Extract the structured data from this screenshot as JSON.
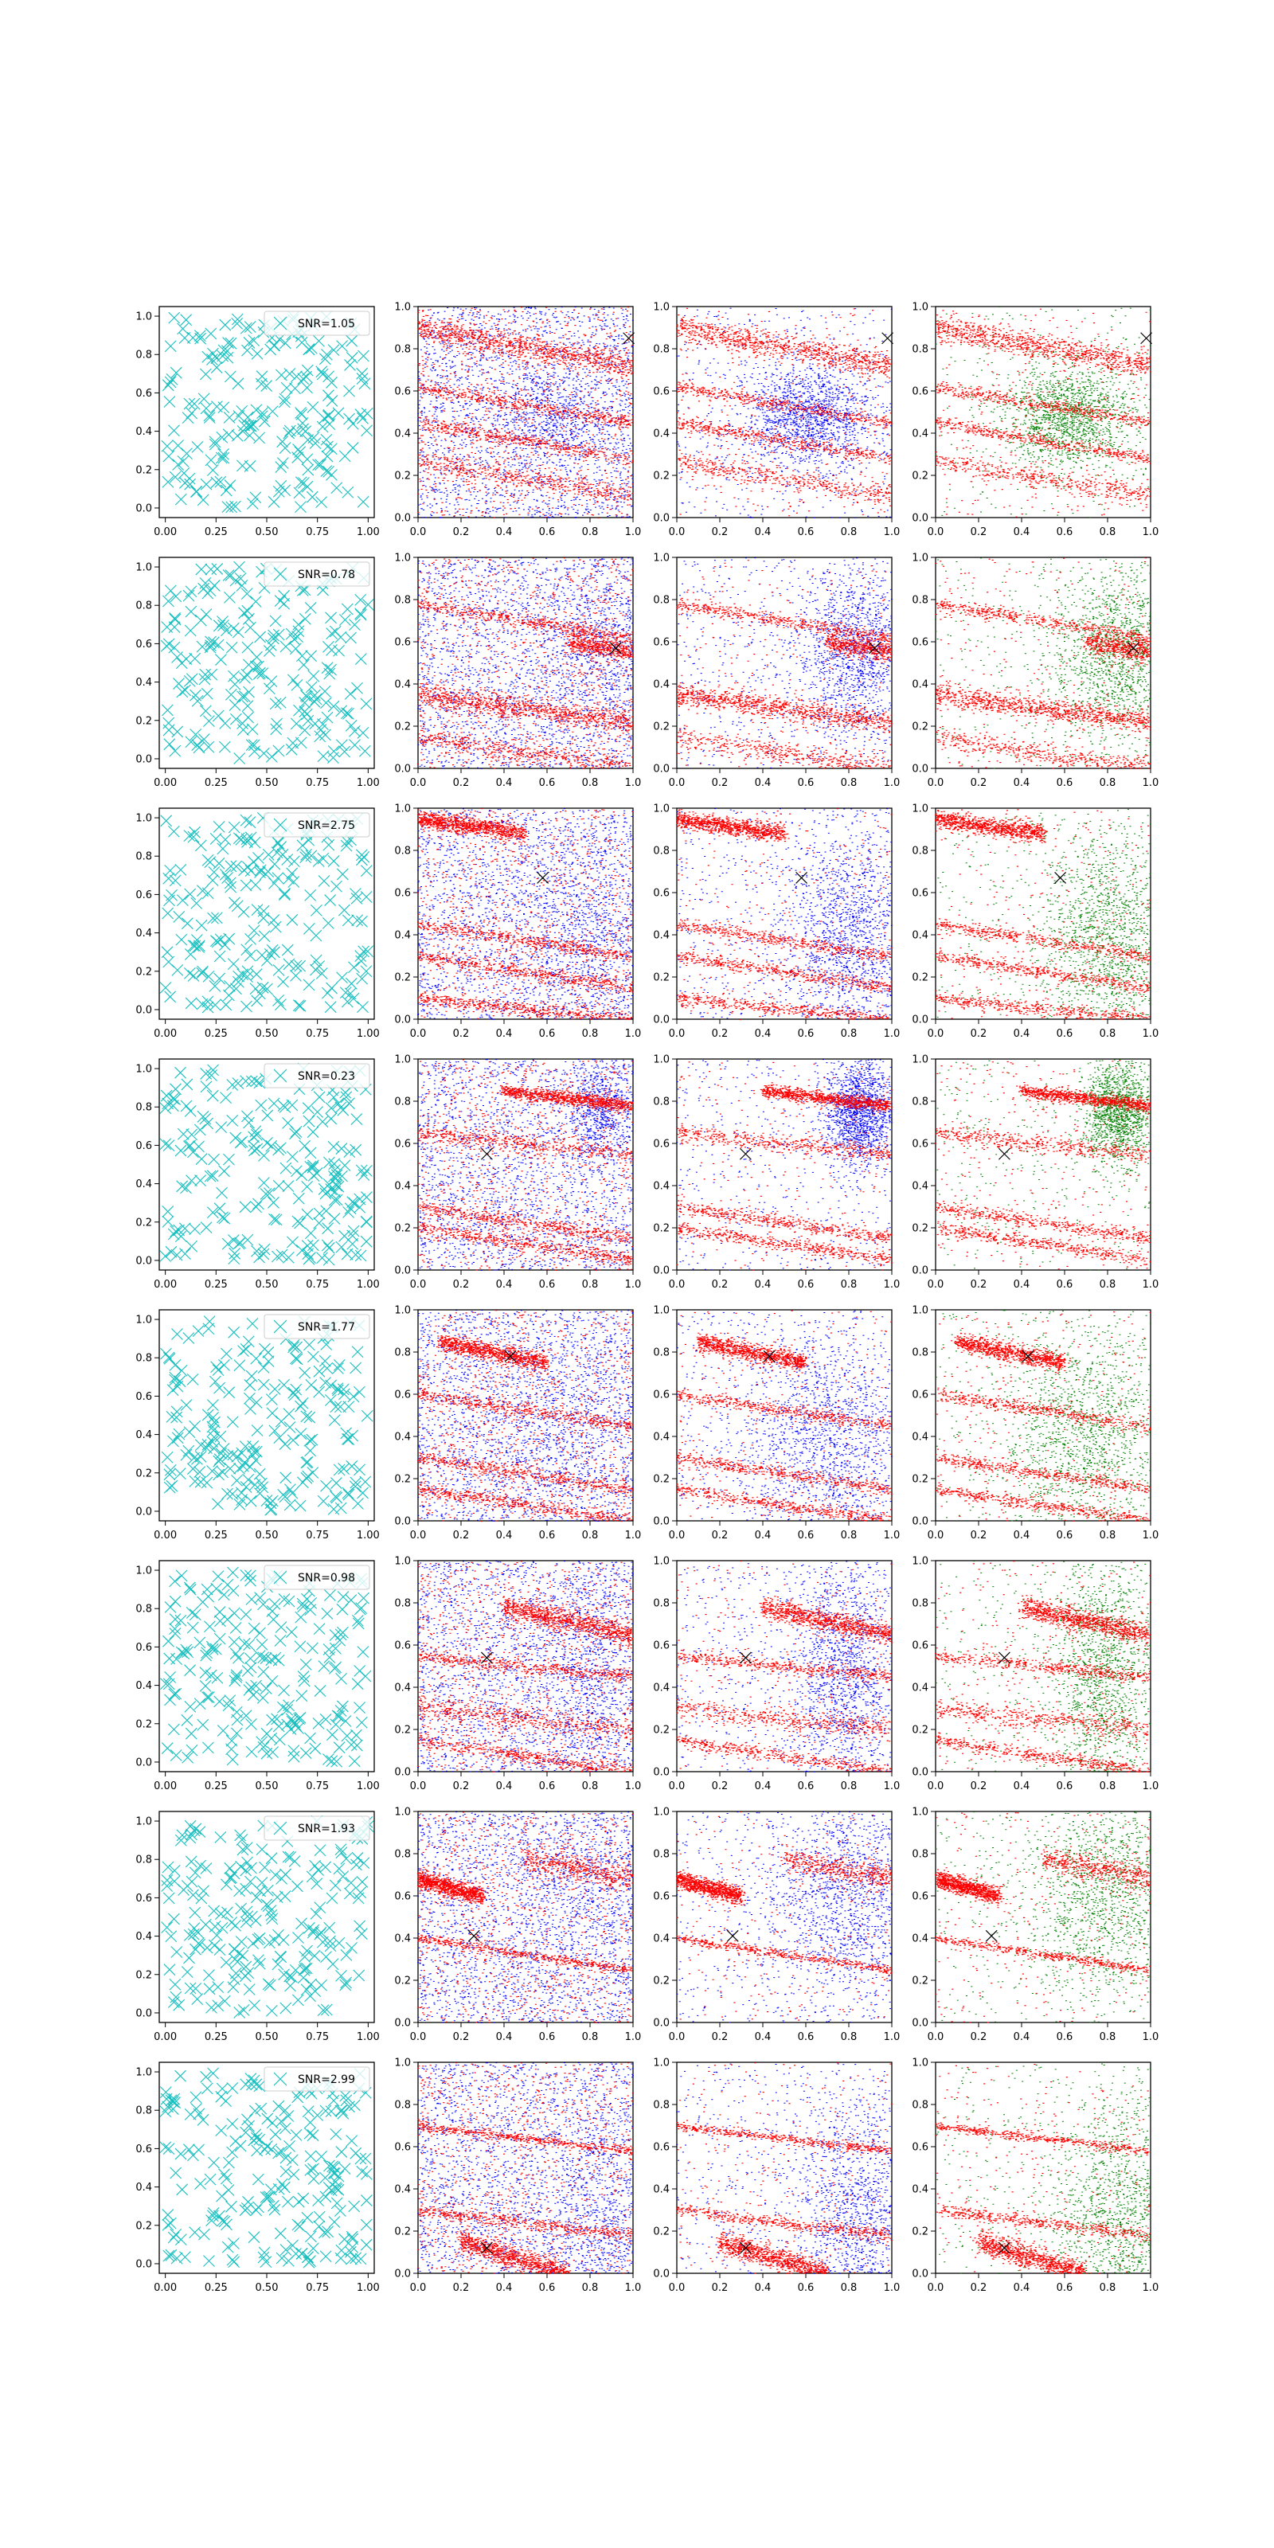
{
  "figure": {
    "layout": "8 rows x 4 columns of scatter panels",
    "colors": {
      "cyan": "#17bfbf",
      "blue": "#0000ff",
      "red": "#ff0000",
      "green": "#008000",
      "marker": "#000000"
    }
  },
  "axes": {
    "col1": {
      "xlim": [
        -0.03,
        1.03
      ],
      "ylim": [
        -0.05,
        1.05
      ],
      "xticks": [
        "0.00",
        "0.25",
        "0.50",
        "0.75",
        "1.00"
      ],
      "yticks": [
        "0.0",
        "0.2",
        "0.4",
        "0.6",
        "0.8",
        "1.0"
      ]
    },
    "cols234": {
      "xlim": [
        0,
        1
      ],
      "ylim": [
        0,
        1
      ],
      "xticks": [
        "0.0",
        "0.2",
        "0.4",
        "0.6",
        "0.8",
        "1.0"
      ],
      "yticks": [
        "0.0",
        "0.2",
        "0.4",
        "0.6",
        "0.8",
        "1.0"
      ]
    }
  },
  "chart_data": [
    {
      "row": 1,
      "type": "scatter",
      "legend": "SNR=1.05",
      "legend_placement": "top-right",
      "cross": [
        0.98,
        0.85
      ],
      "streaks": [
        [
          0.0,
          0.9,
          1.0,
          0.72,
          0.06
        ],
        [
          0.0,
          0.62,
          1.0,
          0.45,
          0.03
        ],
        [
          0.0,
          0.45,
          1.0,
          0.28,
          0.03
        ],
        [
          0.0,
          0.27,
          1.0,
          0.1,
          0.05
        ]
      ],
      "blob": [
        0.62,
        0.48,
        0.15,
        0.12
      ]
    },
    {
      "row": 2,
      "type": "scatter",
      "legend": "SNR=0.78",
      "legend_placement": "top-right",
      "cross": [
        0.92,
        0.57
      ],
      "streaks": [
        [
          0.0,
          0.35,
          1.0,
          0.22,
          0.05
        ],
        [
          0.7,
          0.6,
          1.0,
          0.55,
          0.05
        ],
        [
          0.0,
          0.15,
          1.0,
          0.0,
          0.05
        ],
        [
          0.0,
          0.78,
          1.0,
          0.62,
          0.03
        ]
      ],
      "blob": [
        0.85,
        0.55,
        0.15,
        0.2
      ]
    },
    {
      "row": 3,
      "type": "scatter",
      "legend": "SNR=2.75",
      "legend_placement": "top-right",
      "cross": [
        0.58,
        0.67
      ],
      "streaks": [
        [
          0.0,
          0.95,
          0.5,
          0.88,
          0.04
        ],
        [
          0.0,
          0.45,
          1.0,
          0.3,
          0.03
        ],
        [
          0.0,
          0.3,
          1.0,
          0.15,
          0.03
        ],
        [
          0.0,
          0.1,
          1.0,
          0.0,
          0.03
        ]
      ],
      "blob": [
        0.8,
        0.4,
        0.15,
        0.25
      ]
    },
    {
      "row": 4,
      "type": "scatter",
      "legend": "SNR=0.23",
      "legend_placement": "top-right",
      "cross": [
        0.32,
        0.55
      ],
      "streaks": [
        [
          0.4,
          0.85,
          1.0,
          0.78,
          0.03
        ],
        [
          0.0,
          0.65,
          1.0,
          0.55,
          0.04
        ],
        [
          0.0,
          0.3,
          1.0,
          0.15,
          0.03
        ],
        [
          0.0,
          0.2,
          1.0,
          0.05,
          0.03
        ]
      ],
      "blob": [
        0.85,
        0.75,
        0.08,
        0.12
      ]
    },
    {
      "row": 5,
      "type": "scatter",
      "legend": "SNR=1.77",
      "legend_placement": "top-right",
      "cross": [
        0.43,
        0.78
      ],
      "streaks": [
        [
          0.1,
          0.85,
          0.6,
          0.75,
          0.04
        ],
        [
          0.0,
          0.6,
          1.0,
          0.45,
          0.03
        ],
        [
          0.0,
          0.3,
          1.0,
          0.15,
          0.03
        ],
        [
          0.0,
          0.15,
          1.0,
          0.0,
          0.03
        ]
      ],
      "blob": [
        0.7,
        0.4,
        0.2,
        0.25
      ]
    },
    {
      "row": 6,
      "type": "scatter",
      "legend": "SNR=0.98",
      "legend_placement": "top-right",
      "cross": [
        0.32,
        0.54
      ],
      "streaks": [
        [
          0.4,
          0.78,
          1.0,
          0.65,
          0.05
        ],
        [
          0.0,
          0.3,
          1.0,
          0.2,
          0.05
        ],
        [
          0.0,
          0.55,
          1.0,
          0.45,
          0.03
        ],
        [
          0.0,
          0.15,
          1.0,
          0.0,
          0.03
        ]
      ],
      "blob": [
        0.78,
        0.45,
        0.12,
        0.3
      ]
    },
    {
      "row": 7,
      "type": "scatter",
      "legend": "SNR=1.93",
      "legend_placement": "top-right",
      "cross": [
        0.26,
        0.41
      ],
      "streaks": [
        [
          0.0,
          0.68,
          0.3,
          0.6,
          0.04
        ],
        [
          0.5,
          0.78,
          1.0,
          0.68,
          0.06
        ],
        [
          0.0,
          0.4,
          1.0,
          0.25,
          0.02
        ]
      ],
      "blob": [
        0.8,
        0.6,
        0.2,
        0.25
      ]
    },
    {
      "row": 8,
      "type": "scatter",
      "legend": "SNR=2.99",
      "legend_placement": "top-right",
      "cross": [
        0.32,
        0.12
      ],
      "streaks": [
        [
          0.2,
          0.15,
          0.7,
          0.0,
          0.05
        ],
        [
          0.0,
          0.3,
          1.0,
          0.18,
          0.03
        ],
        [
          0.0,
          0.7,
          1.0,
          0.58,
          0.02
        ]
      ],
      "blob": [
        0.85,
        0.25,
        0.15,
        0.3
      ]
    }
  ]
}
